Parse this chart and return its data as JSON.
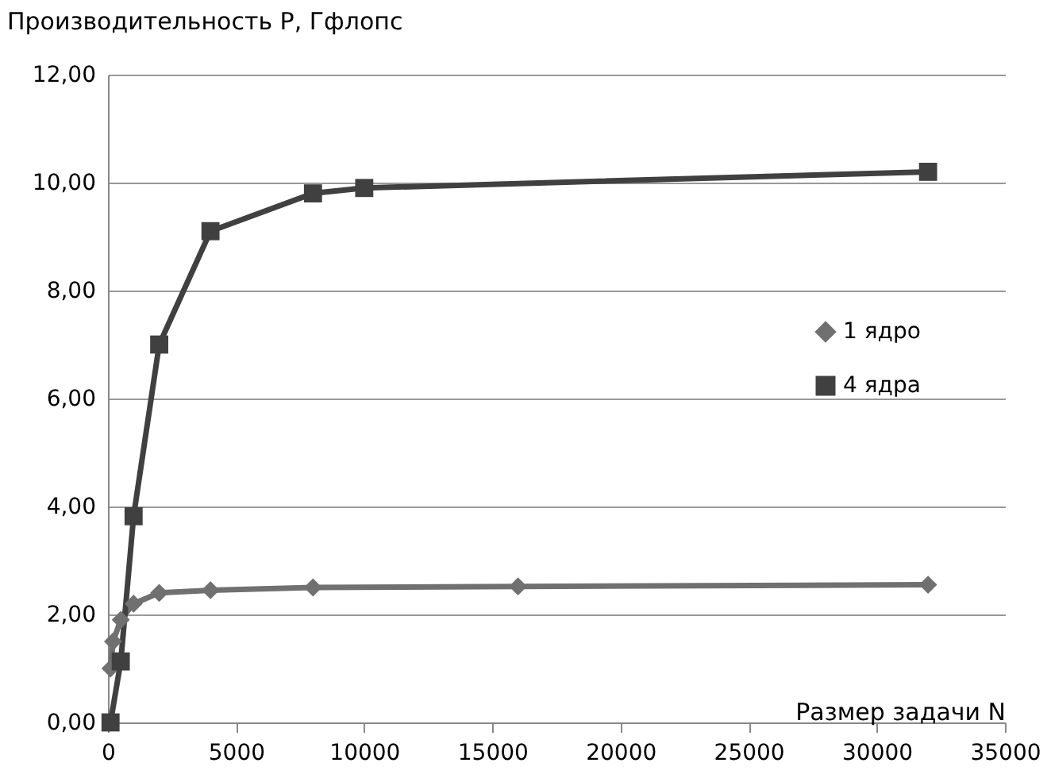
{
  "chart_data": {
    "type": "line",
    "xlabel": "Размер задачи N",
    "ylabel": "Производительность P, Гфлопс",
    "series": [
      {
        "name": "1 ядро",
        "color": "#707070",
        "marker": "diamond",
        "x": [
          100,
          200,
          500,
          1000,
          2000,
          4000,
          8000,
          16000,
          32000
        ],
        "values": [
          1.0,
          1.5,
          1.9,
          2.2,
          2.4,
          2.45,
          2.5,
          2.52,
          2.55
        ]
      },
      {
        "name": "4 ядра",
        "color": "#404040",
        "marker": "square",
        "x": [
          100,
          500,
          1000,
          2000,
          4000,
          8000,
          10000,
          32000
        ],
        "values": [
          0.0,
          1.13,
          3.82,
          7.0,
          9.1,
          9.8,
          9.9,
          10.2
        ]
      }
    ],
    "xlim": [
      0,
      35000
    ],
    "xticks": [
      0,
      5000,
      10000,
      15000,
      20000,
      25000,
      30000,
      35000
    ],
    "ylim": [
      0,
      12
    ],
    "yticks": [
      {
        "value": 0,
        "label": "0,00"
      },
      {
        "value": 2,
        "label": "2,00"
      },
      {
        "value": 4,
        "label": "4,00"
      },
      {
        "value": 6,
        "label": "6,00"
      },
      {
        "value": 8,
        "label": "8,00"
      },
      {
        "value": 10,
        "label": "10,00"
      },
      {
        "value": 12,
        "label": "12,00"
      }
    ],
    "grid": "y",
    "legend": "right"
  }
}
